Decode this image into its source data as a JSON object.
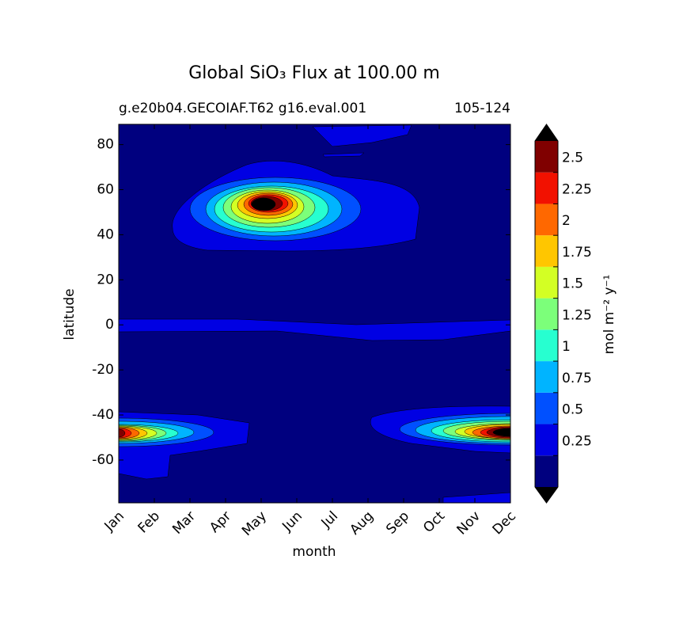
{
  "chart_data": {
    "type": "contour",
    "title": "Global SiO₃ Flux at 100.00 m",
    "subtitle_left": "g.e20b04.GECOIAF.T62 g16.eval.001",
    "subtitle_right": "105-124",
    "xlabel": "month",
    "ylabel": "latitude",
    "categories": [
      "Jan",
      "Feb",
      "Mar",
      "Apr",
      "May",
      "Jun",
      "Jul",
      "Aug",
      "Sep",
      "Oct",
      "Nov",
      "Dec"
    ],
    "ylim": [
      -79,
      89
    ],
    "yticks": [
      -60,
      -40,
      -20,
      0,
      20,
      40,
      60,
      80
    ],
    "levels": [
      0,
      0.25,
      0.5,
      0.75,
      1,
      1.25,
      1.5,
      1.75,
      2,
      2.25,
      2.5,
      2.75
    ],
    "colors": [
      "#00007f",
      "#0000e3",
      "#0050ff",
      "#00b4ff",
      "#27ffd0",
      "#7cff7a",
      "#d3ff24",
      "#ffc600",
      "#ff6800",
      "#f21100",
      "#800000"
    ],
    "extend_color": "#000000",
    "cbar_ticks": [
      0.25,
      0.5,
      0.75,
      1,
      1.25,
      1.5,
      1.75,
      2,
      2.25,
      2.5
    ],
    "cbar_label": "mol m⁻² y⁻¹"
  }
}
